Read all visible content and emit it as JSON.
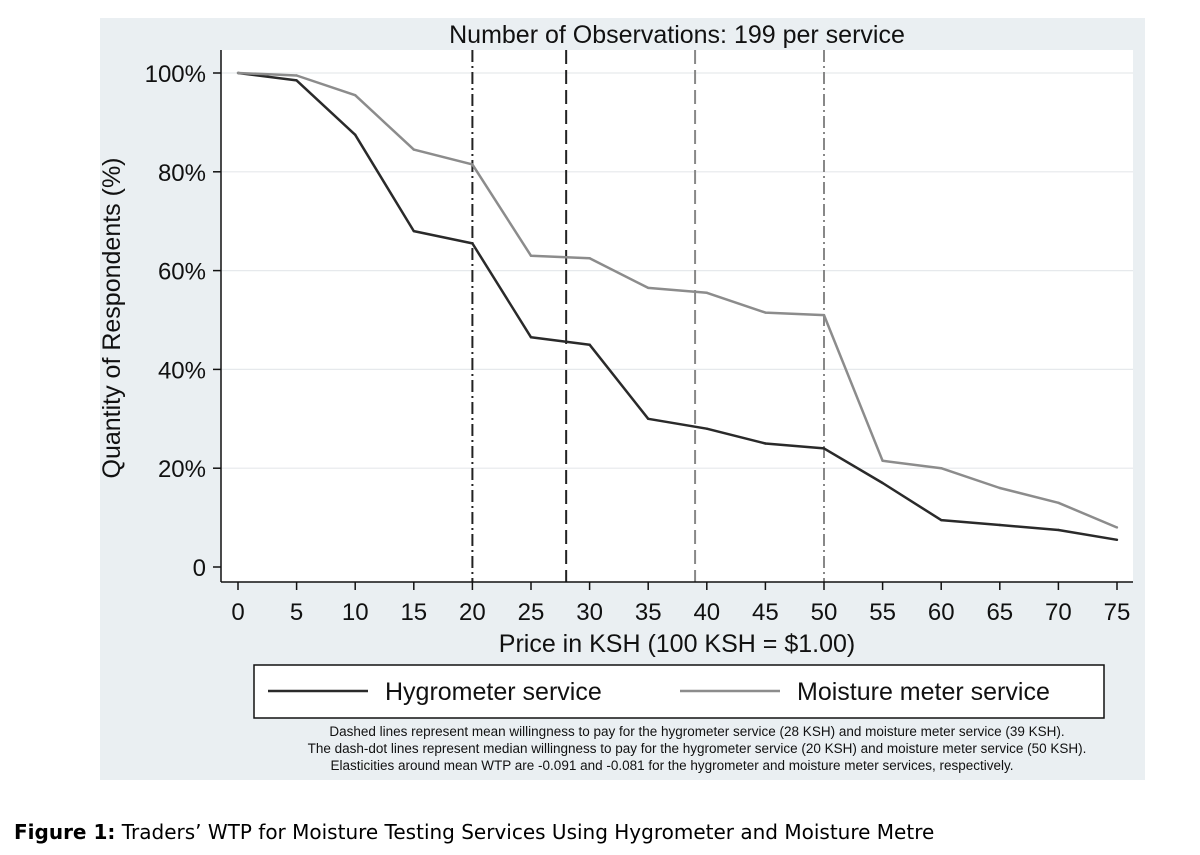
{
  "chart_data": {
    "type": "line",
    "title": "Number of Observations: 199 per service",
    "xlabel": "Price in KSH (100 KSH = $1.00)",
    "ylabel": "Quantity of Respondents (%)",
    "xlim": [
      0,
      75
    ],
    "ylim": [
      0,
      100
    ],
    "x": [
      0,
      5,
      10,
      15,
      20,
      25,
      30,
      35,
      40,
      45,
      50,
      55,
      60,
      65,
      70,
      75
    ],
    "x_ticks": [
      0,
      5,
      10,
      15,
      20,
      25,
      30,
      35,
      40,
      45,
      50,
      55,
      60,
      65,
      70,
      75
    ],
    "x_tick_labels": [
      "0",
      "5",
      "10",
      "15",
      "20",
      "25",
      "30",
      "35",
      "40",
      "45",
      "50",
      "55",
      "60",
      "65",
      "70",
      "75"
    ],
    "y_ticks": [
      0,
      20,
      40,
      60,
      80,
      100
    ],
    "y_tick_labels": [
      "0",
      "20%",
      "40%",
      "60%",
      "80%",
      "100%"
    ],
    "grid": true,
    "legend_position": "bottom",
    "series": [
      {
        "name": "Hygrometer service",
        "color": "#2a2a2a",
        "values": [
          100,
          98.5,
          87.5,
          68,
          65.5,
          46.5,
          45,
          30,
          28,
          25,
          24,
          17,
          9.5,
          8.5,
          7.5,
          5.5
        ]
      },
      {
        "name": "Moisture meter service",
        "color": "#8c8c8c",
        "values": [
          100,
          99.5,
          95.5,
          84.5,
          81.5,
          63,
          62.5,
          56.5,
          55.5,
          51.5,
          51,
          21.5,
          20,
          16,
          13,
          8
        ]
      }
    ],
    "reference_lines": [
      {
        "x": 20,
        "style": "dash-dot",
        "color": "#222222"
      },
      {
        "x": 28,
        "style": "dashed",
        "color": "#222222"
      },
      {
        "x": 39,
        "style": "dashed",
        "color": "#888888"
      },
      {
        "x": 50,
        "style": "dash-dot",
        "color": "#888888"
      }
    ],
    "notes": [
      "Dashed lines represent mean willingness to pay for the hygrometer service (28 KSH) and moisture meter service (39 KSH).",
      "The dash-dot lines represent median willingness to pay for the hygrometer service (20 KSH) and moisture meter service (50 KSH).",
      "Elasticities around mean WTP are -0.091 and -0.081 for the hygrometer and moisture meter services, respectively."
    ]
  },
  "caption": {
    "label": "Figure 1:",
    "text": " Traders’ WTP for Moisture Testing Services Using Hygrometer and Moisture Metre"
  }
}
